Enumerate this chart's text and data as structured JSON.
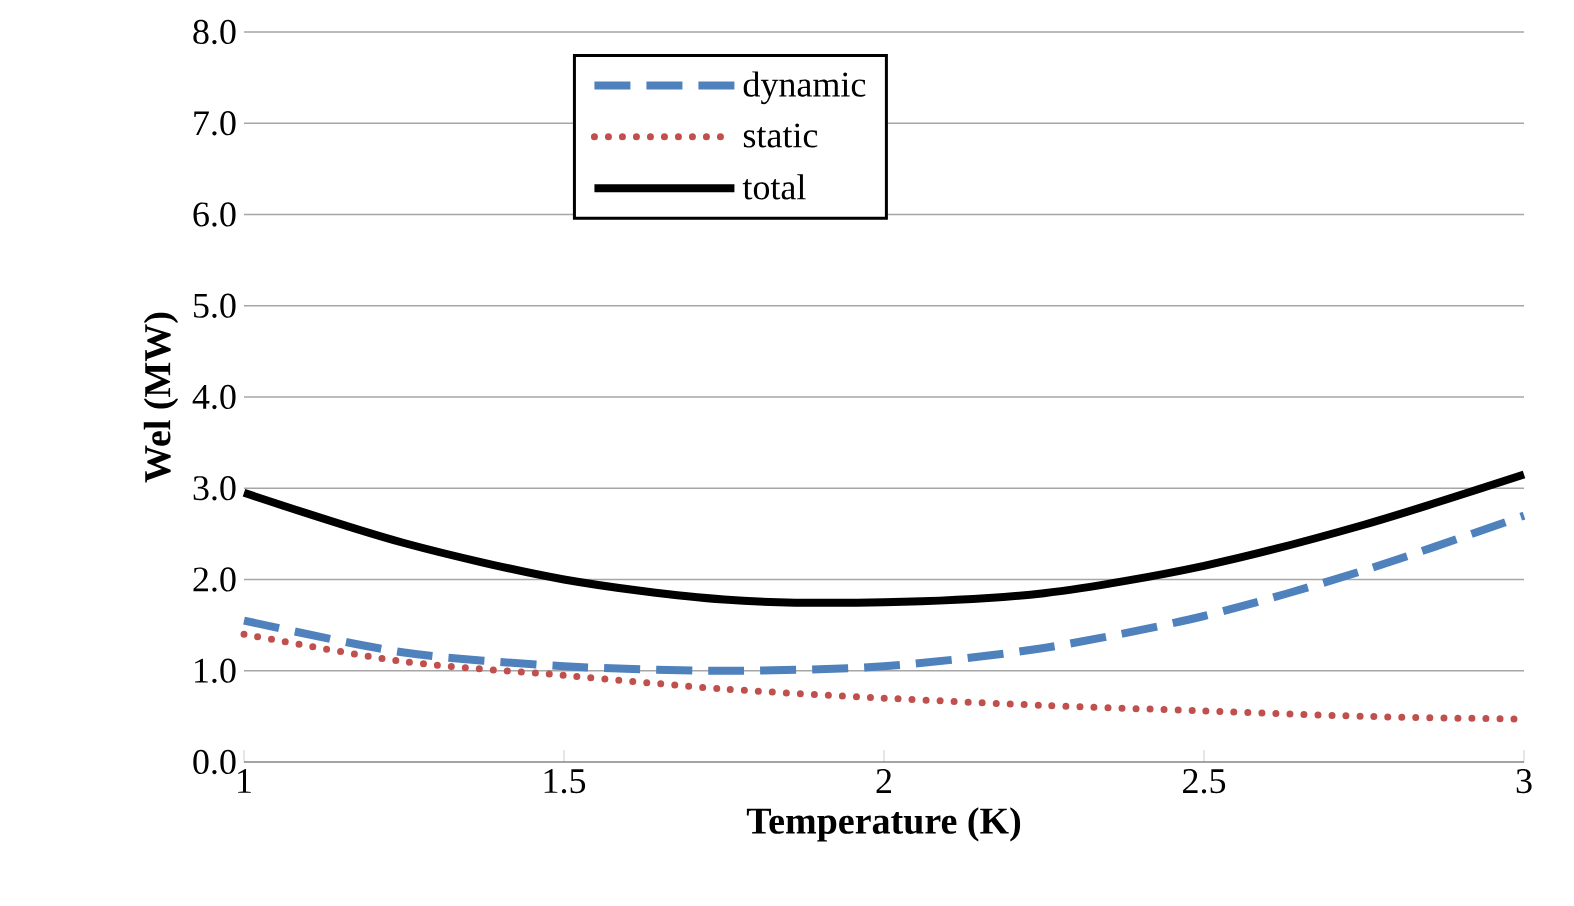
{
  "chart_data": {
    "type": "line",
    "xlabel": "Temperature (K)",
    "ylabel": "Wel (MW)",
    "x": [
      1,
      1.25,
      1.5,
      1.75,
      2,
      2.25,
      2.5,
      2.75,
      3
    ],
    "series": [
      {
        "name": "dynamic",
        "color": "#4f81bd",
        "line_style": "dashed",
        "values": [
          1.55,
          1.2,
          1.05,
          1.0,
          1.05,
          1.25,
          1.6,
          2.1,
          2.7
        ]
      },
      {
        "name": "static",
        "color": "#c0504d",
        "line_style": "dotted",
        "values": [
          1.4,
          1.1,
          0.95,
          0.8,
          0.7,
          0.62,
          0.56,
          0.5,
          0.47
        ]
      },
      {
        "name": "total",
        "color": "#000000",
        "line_style": "solid",
        "values": [
          2.95,
          2.4,
          2.0,
          1.78,
          1.75,
          1.85,
          2.15,
          2.6,
          3.15
        ]
      }
    ],
    "xlim": [
      1,
      3
    ],
    "xticks": [
      1,
      1.5,
      2,
      2.5,
      3
    ],
    "ylim": [
      0,
      8
    ],
    "yticks": [
      {
        "value": 0,
        "label": "0.0"
      },
      {
        "value": 1,
        "label": "1.0"
      },
      {
        "value": 2,
        "label": "2.0"
      },
      {
        "value": 3,
        "label": "3.0"
      },
      {
        "value": 4,
        "label": "4.0"
      },
      {
        "value": 5,
        "label": "5.0"
      },
      {
        "value": 6,
        "label": "6.0"
      },
      {
        "value": 7,
        "label": "7.0"
      },
      {
        "value": 8,
        "label": "8.0"
      }
    ],
    "grid": "y",
    "legend": "top",
    "marker": "none"
  }
}
